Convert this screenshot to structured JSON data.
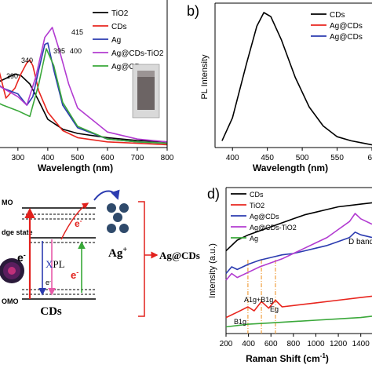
{
  "figure": {
    "panel_a": {
      "xlabel": "Wavelength (nm)",
      "xticks": [
        "300",
        "400",
        "500",
        "600",
        "700",
        "800"
      ],
      "legend": [
        "TiO2",
        "CDs",
        "Ag",
        "Ag@CDs-TiO2",
        "Ag@CDs"
      ],
      "peak_labels": [
        "415",
        "395",
        "400",
        "340",
        "290"
      ],
      "colors": {
        "TiO2": "#000000",
        "CDs": "#e8261f",
        "Ag": "#2b3bb0",
        "Ag@CDs-TiO2": "#b23bd1",
        "Ag@CDs": "#3aa83a"
      }
    },
    "panel_b": {
      "label": "b)",
      "ylabel": "PL Intensity",
      "xlabel": "Wavelength (nm)",
      "xticks": [
        "400",
        "450",
        "500",
        "550",
        "60"
      ],
      "legend": [
        "CDs",
        "Ag@CDs",
        "Ag@CDs"
      ]
    },
    "panel_c": {
      "mo_top": "MO",
      "mo_bottom": "OMO",
      "edge_state": "dge state",
      "electron": "e",
      "electron_sup": "-",
      "pl": "PL",
      "ag_ion": "Ag",
      "ag_ion_sup": "+",
      "product": "Ag@CDs",
      "cds": "CDs"
    },
    "panel_d": {
      "label": "d)",
      "ylabel": "Intensity (a.u.)",
      "xlabel": "Raman Shift (cm",
      "xlabel_sup": "-1",
      "xlabel_end": ")",
      "xticks": [
        "200",
        "400",
        "600",
        "800",
        "1000",
        "1200",
        "1400"
      ],
      "legend": [
        "CDs",
        "TiO2",
        "Ag@CDs",
        "Ag@CDs-TiO2",
        "Ag"
      ],
      "annotations": [
        "D band",
        "A1g+B1g",
        "Eg",
        "B1g"
      ]
    }
  },
  "chart_data": [
    {
      "type": "line",
      "panel": "a",
      "xlabel": "Wavelength (nm)",
      "ylabel": "",
      "xlim": [
        200,
        800
      ],
      "series": [
        {
          "name": "TiO2",
          "x": [
            200,
            240,
            270,
            290,
            310,
            340,
            370,
            400,
            450,
            500,
            600,
            700,
            800
          ],
          "y": [
            0.48,
            0.47,
            0.5,
            0.52,
            0.51,
            0.45,
            0.33,
            0.2,
            0.13,
            0.1,
            0.07,
            0.05,
            0.04
          ]
        },
        {
          "name": "CDs",
          "x": [
            200,
            230,
            260,
            290,
            310,
            330,
            340,
            350,
            370,
            400,
            450,
            500,
            600,
            700,
            800
          ],
          "y": [
            0.95,
            0.6,
            0.35,
            0.42,
            0.52,
            0.6,
            0.62,
            0.58,
            0.4,
            0.25,
            0.12,
            0.07,
            0.04,
            0.03,
            0.02
          ]
        },
        {
          "name": "Ag",
          "x": [
            200,
            250,
            300,
            330,
            350,
            370,
            390,
            400,
            420,
            450,
            500,
            600,
            700,
            800
          ],
          "y": [
            0.5,
            0.42,
            0.38,
            0.3,
            0.36,
            0.55,
            0.73,
            0.74,
            0.55,
            0.3,
            0.14,
            0.06,
            0.04,
            0.03
          ]
        },
        {
          "name": "Ag@CDs-TiO2",
          "x": [
            200,
            250,
            300,
            330,
            360,
            390,
            415,
            440,
            470,
            500,
            600,
            700,
            800
          ],
          "y": [
            0.48,
            0.42,
            0.36,
            0.3,
            0.5,
            0.78,
            0.85,
            0.68,
            0.45,
            0.28,
            0.11,
            0.06,
            0.04
          ]
        },
        {
          "name": "Ag@CDs",
          "x": [
            200,
            250,
            300,
            340,
            370,
            395,
            420,
            450,
            500,
            600,
            700,
            800
          ],
          "y": [
            0.35,
            0.3,
            0.26,
            0.22,
            0.45,
            0.7,
            0.58,
            0.32,
            0.15,
            0.06,
            0.04,
            0.03
          ]
        }
      ]
    },
    {
      "type": "line",
      "panel": "b",
      "xlabel": "Wavelength (nm)",
      "ylabel": "PL Intensity",
      "xlim": [
        375,
        600
      ],
      "series": [
        {
          "name": "CDs",
          "x": [
            385,
            400,
            420,
            435,
            445,
            455,
            470,
            490,
            510,
            530,
            550,
            570,
            590,
            600
          ],
          "y": [
            0.05,
            0.22,
            0.62,
            0.9,
            1.0,
            0.97,
            0.8,
            0.52,
            0.3,
            0.16,
            0.08,
            0.05,
            0.03,
            0.02
          ]
        }
      ]
    },
    {
      "type": "line",
      "panel": "d",
      "xlabel": "Raman Shift (cm-1)",
      "ylabel": "Intensity (a.u.)",
      "xlim": [
        200,
        1500
      ],
      "series": [
        {
          "name": "CDs",
          "x": [
            200,
            300,
            400,
            500,
            600,
            700,
            800,
            900,
            1000,
            1100,
            1200,
            1300,
            1400,
            1500
          ],
          "y": [
            0.62,
            0.7,
            0.74,
            0.77,
            0.8,
            0.83,
            0.86,
            0.89,
            0.91,
            0.93,
            0.95,
            0.96,
            0.97,
            0.98
          ]
        },
        {
          "name": "TiO2",
          "x": [
            200,
            300,
            395,
            450,
            515,
            580,
            640,
            700,
            800,
            1000,
            1200,
            1400,
            1500
          ],
          "y": [
            0.12,
            0.16,
            0.2,
            0.17,
            0.24,
            0.19,
            0.25,
            0.2,
            0.21,
            0.23,
            0.25,
            0.27,
            0.28
          ]
        },
        {
          "name": "Ag@CDs",
          "x": [
            200,
            250,
            300,
            400,
            500,
            600,
            700,
            800,
            900,
            1000,
            1100,
            1200,
            1300,
            1350,
            1400,
            1500
          ],
          "y": [
            0.45,
            0.5,
            0.48,
            0.52,
            0.55,
            0.57,
            0.59,
            0.6,
            0.62,
            0.64,
            0.66,
            0.69,
            0.72,
            0.76,
            0.74,
            0.72
          ]
        },
        {
          "name": "Ag@CDs-TiO2",
          "x": [
            200,
            250,
            300,
            400,
            500,
            600,
            700,
            800,
            900,
            1000,
            1100,
            1200,
            1300,
            1350,
            1400,
            1500
          ],
          "y": [
            0.4,
            0.45,
            0.42,
            0.46,
            0.5,
            0.53,
            0.56,
            0.6,
            0.64,
            0.68,
            0.72,
            0.78,
            0.84,
            0.9,
            0.86,
            0.82
          ]
        },
        {
          "name": "Ag",
          "x": [
            200,
            400,
            600,
            800,
            1000,
            1200,
            1400,
            1500
          ],
          "y": [
            0.05,
            0.07,
            0.08,
            0.09,
            0.1,
            0.11,
            0.12,
            0.13
          ]
        }
      ]
    }
  ]
}
